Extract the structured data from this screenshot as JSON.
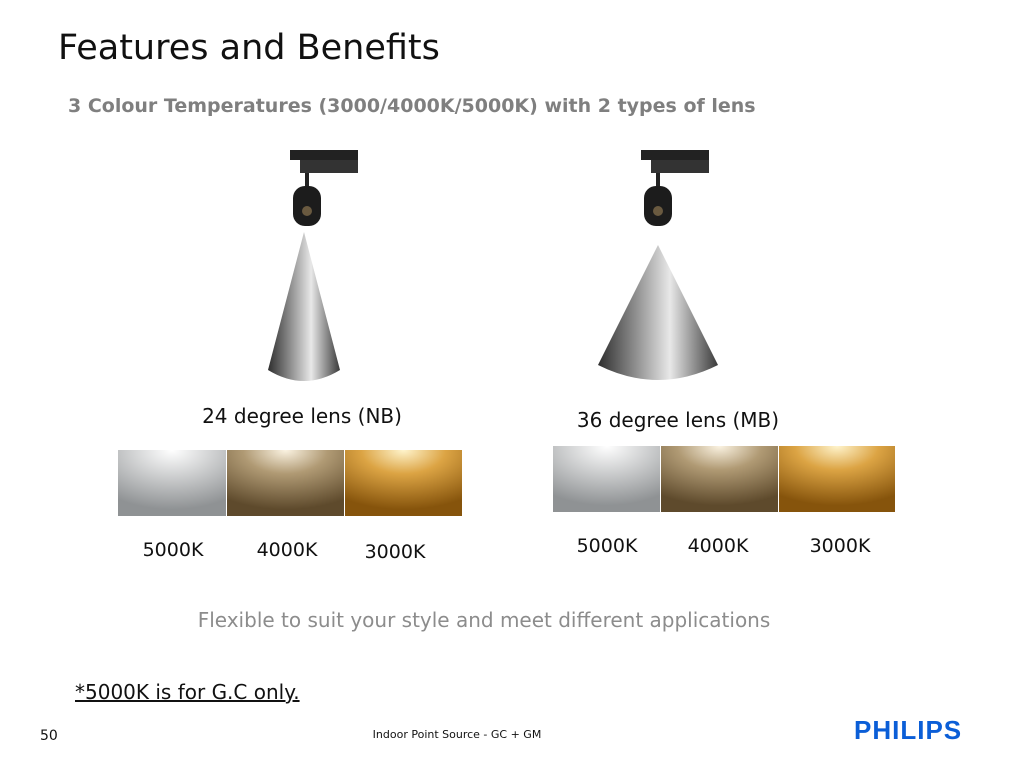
{
  "header": {
    "title": "Features and Benefits",
    "subtitle": "3 Colour Temperatures (3000/4000K/5000K) with 2 types of lens"
  },
  "lenses": [
    {
      "label": "24 degree lens (NB)",
      "temps": [
        "5000K",
        "4000K",
        "3000K"
      ]
    },
    {
      "label": "36 degree lens (MB)",
      "temps": [
        "5000K",
        "4000K",
        "3000K"
      ]
    }
  ],
  "tagline": "Flexible to suit your style and meet different applications",
  "note": "*5000K is for G.C only.",
  "footer": {
    "page": "50",
    "text": "Indoor Point Source - GC + GM",
    "brand": "PHILIPS"
  }
}
